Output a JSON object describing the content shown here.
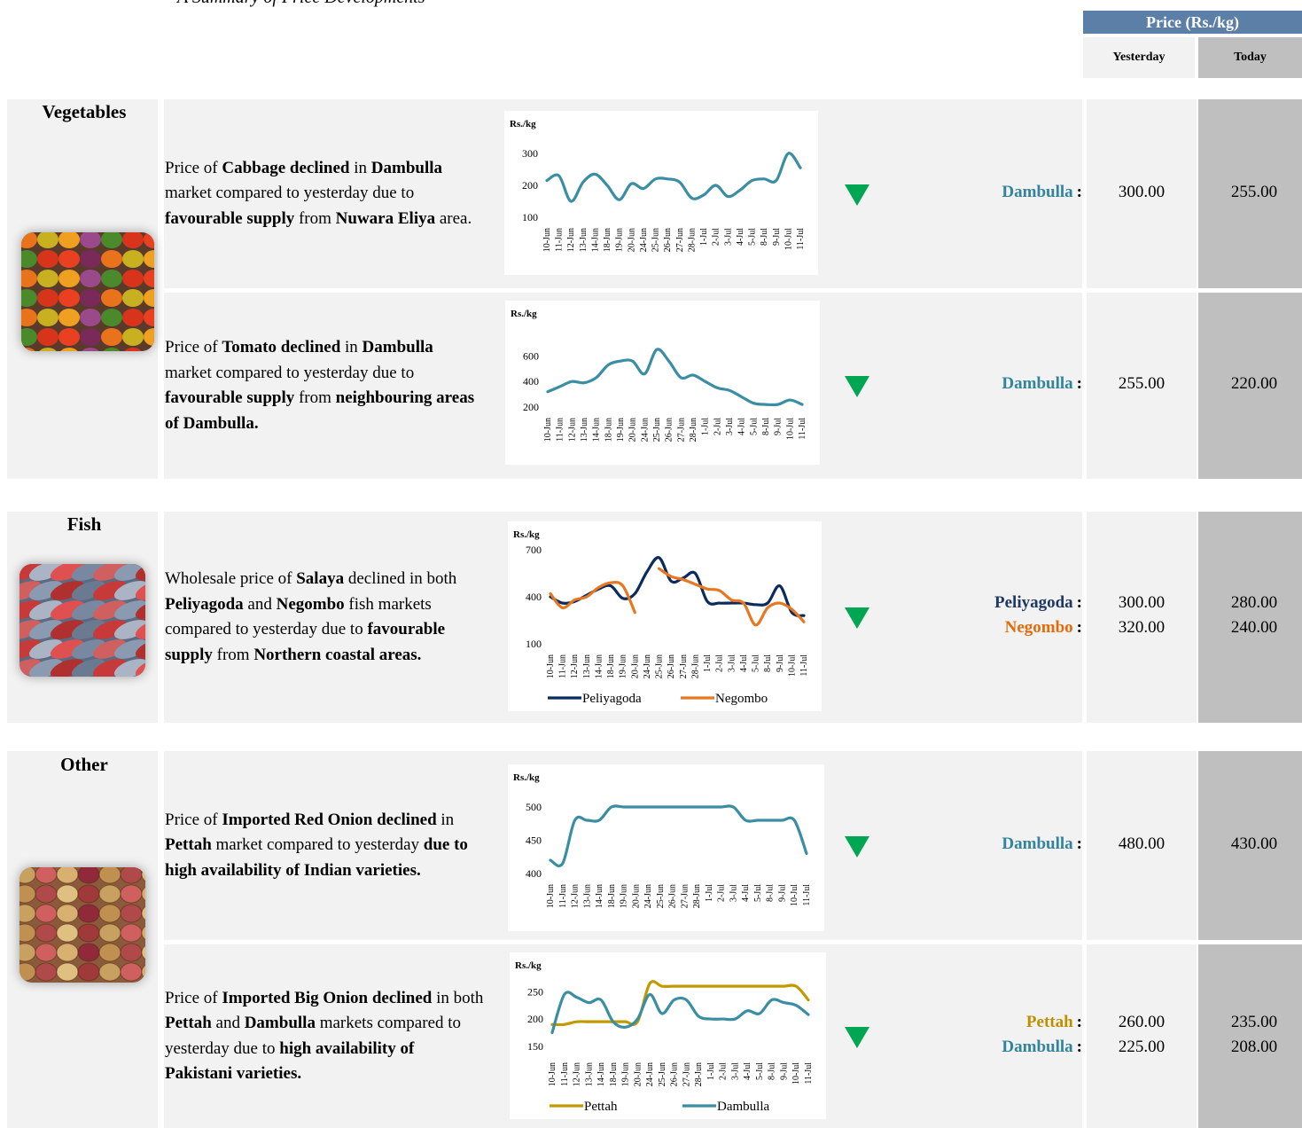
{
  "header": {
    "title": "A Summary of Price Developments",
    "price_header": "Price (Rs./kg)",
    "yesterday": "Yesterday",
    "today": "Today"
  },
  "sections": [
    {
      "name": "Vegetables",
      "rows": [
        {
          "description": [
            {
              "text": "Price of ",
              "bold": false
            },
            {
              "text": "Cabbage declined",
              "bold": true
            },
            {
              "text": " in ",
              "bold": false
            },
            {
              "text": "Dambulla",
              "bold": true
            },
            {
              "text": " market compared to yesterday due to ",
              "bold": false
            },
            {
              "text": "favourable supply",
              "bold": true
            },
            {
              "text": " from ",
              "bold": false
            },
            {
              "text": "Nuwara Eliya",
              "bold": true
            },
            {
              "text": " area.",
              "bold": false
            }
          ],
          "chart": {
            "type": "line",
            "y_label": "Rs./kg",
            "categories": [
              "10-Jun",
              "11-Jun",
              "12-Jun",
              "13-Jun",
              "14-Jun",
              "18-Jun",
              "19-Jun",
              "20-Jun",
              "24-Jun",
              "25-Jun",
              "26-Jun",
              "27-Jun",
              "28-Jun",
              "1-Jul",
              "2-Jul",
              "3-Jul",
              "4-Jul",
              "5-Jul",
              "8-Jul",
              "9-Jul",
              "10-Jul",
              "11-Jul"
            ],
            "ylim": [
              100,
              300
            ],
            "yticks": [
              100,
              200,
              300
            ],
            "series": [
              {
                "color": "#3a8ea3",
                "values": [
                  215,
                  230,
                  150,
                  210,
                  235,
                  200,
                  155,
                  205,
                  190,
                  220,
                  220,
                  210,
                  160,
                  170,
                  200,
                  165,
                  185,
                  215,
                  220,
                  215,
                  300,
                  255
                ]
              }
            ]
          },
          "markets": [
            {
              "name": "Dambulla",
              "suffix": ":",
              "color": "#31849b",
              "yesterday": "300.00",
              "today": "255.00"
            }
          ]
        },
        {
          "description": [
            {
              "text": "Price of ",
              "bold": false
            },
            {
              "text": "Tomato declined",
              "bold": true
            },
            {
              "text": " in ",
              "bold": false
            },
            {
              "text": "Dambulla",
              "bold": true
            },
            {
              "text": " market compared to yesterday due to ",
              "bold": false
            },
            {
              "text": "favourable supply",
              "bold": true
            },
            {
              "text": " from  ",
              "bold": false
            },
            {
              "text": "neighbouring areas of Dambulla.",
              "bold": true
            }
          ],
          "chart": {
            "type": "line",
            "y_label": "Rs./kg",
            "categories": [
              "10-Jun",
              "11-Jun",
              "12-Jun",
              "13-Jun",
              "14-Jun",
              "18-Jun",
              "19-Jun",
              "20-Jun",
              "24-Jun",
              "25-Jun",
              "26-Jun",
              "27-Jun",
              "28-Jun",
              "1-Jul",
              "2-Jul",
              "3-Jul",
              "4-Jul",
              "5-Jul",
              "8-Jul",
              "9-Jul",
              "10-Jul",
              "11-Jul"
            ],
            "ylim": [
              200,
              700
            ],
            "yticks": [
              200,
              400,
              600
            ],
            "series": [
              {
                "color": "#3a8ea3",
                "values": [
                  320,
                  360,
                  400,
                  390,
                  430,
                  530,
                  560,
                  560,
                  460,
                  650,
                  560,
                  430,
                  450,
                  400,
                  350,
                  330,
                  280,
                  230,
                  220,
                  220,
                  255,
                  220
                ]
              }
            ]
          },
          "markets": [
            {
              "name": "Dambulla",
              "suffix": ":",
              "color": "#31849b",
              "yesterday": "255.00",
              "today": "220.00"
            }
          ]
        }
      ]
    },
    {
      "name": "Fish",
      "rows": [
        {
          "description": [
            {
              "text": "Wholesale price of ",
              "bold": false
            },
            {
              "text": "Salaya",
              "bold": true
            },
            {
              "text": " declined in both ",
              "bold": false
            },
            {
              "text": "Peliyagoda",
              "bold": true
            },
            {
              "text": " and ",
              "bold": false
            },
            {
              "text": "Negombo",
              "bold": true
            },
            {
              "text": " fish markets compared to yesterday due to ",
              "bold": false
            },
            {
              "text": "favourable supply",
              "bold": true
            },
            {
              "text": " from ",
              "bold": false
            },
            {
              "text": "Northern coastal areas.",
              "bold": true
            }
          ],
          "chart": {
            "type": "line",
            "y_label": "Rs./kg",
            "categories": [
              "10-Jun",
              "11-Jun",
              "12-Jun",
              "13-Jun",
              "14-Jun",
              "18-Jun",
              "19-Jun",
              "20-Jun",
              "24-Jun",
              "25-Jun",
              "26-Jun",
              "27-Jun",
              "28-Jun",
              "1-Jul",
              "2-Jul",
              "3-Jul",
              "4-Jul",
              "5-Jul",
              "8-Jul",
              "9-Jul",
              "10-Jul",
              "11-Jul"
            ],
            "ylim": [
              100,
              700
            ],
            "yticks": [
              100,
              400,
              700
            ],
            "legend": "bottom",
            "series": [
              {
                "name": "Peliyagoda",
                "color": "#0b2a5e",
                "values": [
                  400,
                  360,
                  370,
                  410,
                  450,
                  470,
                  390,
                  420,
                  560,
                  650,
                  500,
                  520,
                  550,
                  370,
                  360,
                  360,
                  360,
                  350,
                  360,
                  470,
                  300,
                  280
                ]
              },
              {
                "name": "Negombo",
                "color": "#e87722",
                "values": [
                  420,
                  330,
                  380,
                  400,
                  460,
                  490,
                  470,
                  300,
                  null,
                  580,
                  530,
                  510,
                  480,
                  450,
                  440,
                  380,
                  360,
                  220,
                  330,
                  360,
                  320,
                  240
                ]
              }
            ]
          },
          "markets": [
            {
              "name": "Peliyagoda",
              "suffix": ":",
              "color": "#1f3864",
              "yesterday": "300.00",
              "today": "280.00"
            },
            {
              "name": "Negombo",
              "suffix": ":",
              "color": "#e36c0a",
              "yesterday": "320.00",
              "today": "240.00"
            }
          ]
        }
      ]
    },
    {
      "name": "Other",
      "rows": [
        {
          "description": [
            {
              "text": "Price of ",
              "bold": false
            },
            {
              "text": "Imported Red Onion declined",
              "bold": true
            },
            {
              "text": " in ",
              "bold": false
            },
            {
              "text": "Pettah",
              "bold": true
            },
            {
              "text": " market compared to yesterday ",
              "bold": false
            },
            {
              "text": "due to high availability of Indian varieties.",
              "bold": true
            }
          ],
          "chart": {
            "type": "line",
            "y_label": "Rs./kg",
            "categories": [
              "10-Jun",
              "11-Jun",
              "12-Jun",
              "13-Jun",
              "14-Jun",
              "18-Jun",
              "19-Jun",
              "20-Jun",
              "24-Jun",
              "25-Jun",
              "26-Jun",
              "27-Jun",
              "28-Jun",
              "1-Jul",
              "2-Jul",
              "3-Jul",
              "4-Jul",
              "5-Jul",
              "8-Jul",
              "9-Jul",
              "10-Jul",
              "11-Jul"
            ],
            "ylim": [
              400,
              500
            ],
            "yticks": [
              400,
              450,
              500
            ],
            "series": [
              {
                "color": "#3a8ea3",
                "values": [
                  420,
                  415,
                  480,
                  480,
                  480,
                  500,
                  500,
                  500,
                  500,
                  500,
                  500,
                  500,
                  500,
                  500,
                  500,
                  500,
                  480,
                  480,
                  480,
                  480,
                  480,
                  430
                ]
              }
            ]
          },
          "markets": [
            {
              "name": "Dambulla",
              "suffix": ":",
              "color": "#31849b",
              "yesterday": "480.00",
              "today": "430.00"
            }
          ]
        },
        {
          "description": [
            {
              "text": "Price of ",
              "bold": false
            },
            {
              "text": "Imported Big Onion declined",
              "bold": true
            },
            {
              "text": " in both ",
              "bold": false
            },
            {
              "text": "Pettah",
              "bold": true
            },
            {
              "text": " and ",
              "bold": false
            },
            {
              "text": "Dambulla",
              "bold": true
            },
            {
              "text": " markets compared to yesterday due to  ",
              "bold": false
            },
            {
              "text": "high availability of Pakistani varieties.",
              "bold": true
            }
          ],
          "chart": {
            "type": "line",
            "y_label": "Rs./kg",
            "categories": [
              "10-Jun",
              "11-Jun",
              "12-Jun",
              "13-Jun",
              "14-Jun",
              "18-Jun",
              "19-Jun",
              "20-Jun",
              "24-Jun",
              "25-Jun",
              "26-Jun",
              "27-Jun",
              "28-Jun",
              "1-Jul",
              "2-Jul",
              "3-Jul",
              "4-Jul",
              "5-Jul",
              "8-Jul",
              "9-Jul",
              "10-Jul",
              "11-Jul"
            ],
            "ylim": [
              140,
              270
            ],
            "yticks": [
              150,
              200,
              250
            ],
            "legend": "bottom",
            "series": [
              {
                "name": "Pettah",
                "color": "#c09a00",
                "values": [
                  190,
                  190,
                  195,
                  195,
                  195,
                  195,
                  195,
                  195,
                  265,
                  260,
                  260,
                  260,
                  260,
                  260,
                  260,
                  260,
                  260,
                  260,
                  260,
                  260,
                  260,
                  235
                ]
              },
              {
                "name": "Dambulla",
                "color": "#3a8ea3",
                "values": [
                  175,
                  245,
                  240,
                  230,
                  235,
                  195,
                  185,
                  200,
                  245,
                  210,
                  235,
                  235,
                  205,
                  200,
                  200,
                  200,
                  215,
                  210,
                  235,
                  230,
                  225,
                  208
                ]
              }
            ]
          },
          "markets": [
            {
              "name": "Pettah",
              "suffix": ":",
              "color": "#bf8f00",
              "yesterday": "260.00",
              "today": "235.00"
            },
            {
              "name": "Dambulla",
              "suffix": ":",
              "color": "#31849b",
              "yesterday": "225.00",
              "today": "208.00"
            }
          ]
        }
      ]
    }
  ]
}
